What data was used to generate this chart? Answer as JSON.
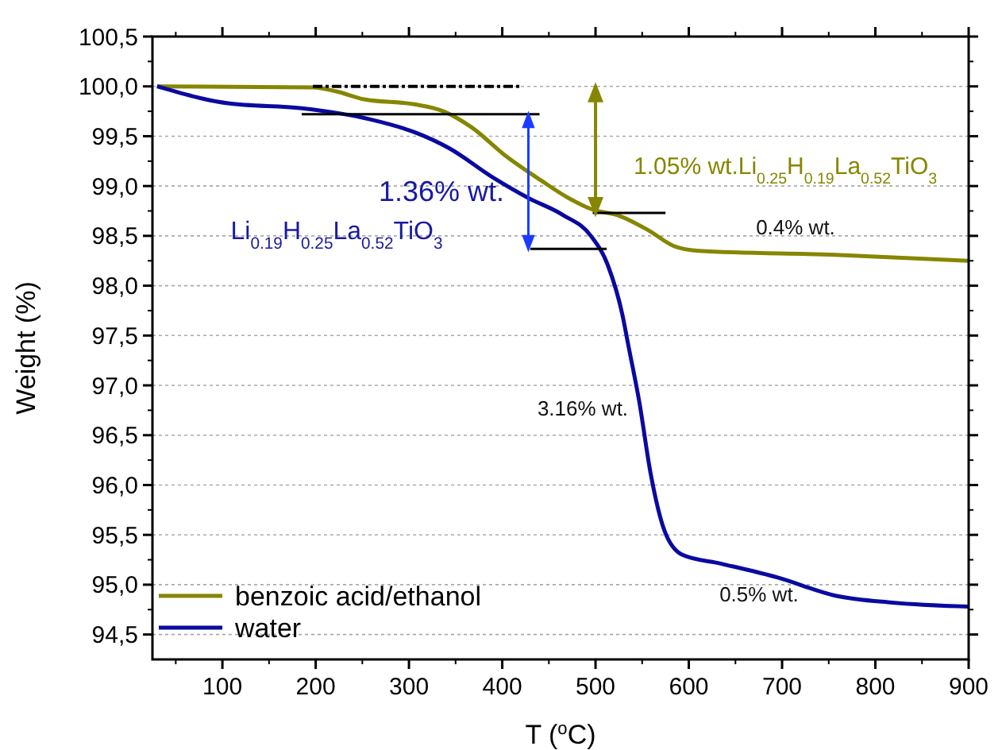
{
  "chart_data": {
    "type": "line",
    "xlabel": "T ($^{o}$C)",
    "ylabel": "Weight (%)",
    "xlim": [
      25,
      900
    ],
    "xticks": [
      100,
      200,
      300,
      400,
      500,
      600,
      700,
      800,
      900
    ],
    "ylim": [
      94.25,
      100.5
    ],
    "yticks": [
      {
        "value": 94.5,
        "label": "94,5"
      },
      {
        "value": 95,
        "label": "95,0"
      },
      {
        "value": 95.5,
        "label": "95,5"
      },
      {
        "value": 96,
        "label": "96,0"
      },
      {
        "value": 96.5,
        "label": "96,5"
      },
      {
        "value": 97,
        "label": "97,0"
      },
      {
        "value": 97.5,
        "label": "97,5"
      },
      {
        "value": 98,
        "label": "98,0"
      },
      {
        "value": 98.5,
        "label": "98,5"
      },
      {
        "value": 99,
        "label": "99,0"
      },
      {
        "value": 99.5,
        "label": "99,5"
      },
      {
        "value": 100,
        "label": "100,0"
      },
      {
        "value": 100.5,
        "label": "100,5"
      }
    ],
    "grid": "y",
    "legend": "bottom left",
    "marker": "none",
    "line_style": "solid",
    "series": [
      {
        "name": "benzoic acid/ethanol",
        "color": "#868600",
        "x": [
          30,
          197,
          222,
          252,
          306,
          337,
          367,
          404,
          441,
          471,
          495,
          526,
          556,
          586,
          611,
          757,
          900
        ],
        "values": [
          100,
          99.99,
          99.95,
          99.87,
          99.82,
          99.75,
          99.59,
          99.3,
          99.06,
          98.88,
          98.77,
          98.7,
          98.56,
          98.39,
          98.35,
          98.31,
          98.25
        ]
      },
      {
        "name": "water",
        "color": "#0a0aa0",
        "x": [
          30,
          106,
          185,
          258,
          306,
          343,
          391,
          428,
          465,
          495,
          513,
          529,
          535,
          547,
          559,
          574,
          593,
          635,
          696,
          757,
          818,
          900
        ],
        "values": [
          100,
          99.83,
          99.78,
          99.67,
          99.54,
          99.38,
          99.08,
          98.88,
          98.71,
          98.5,
          98.21,
          97.7,
          97.41,
          96.83,
          96.12,
          95.54,
          95.3,
          95.21,
          95.07,
          94.89,
          94.82,
          94.78
        ]
      }
    ],
    "annotations": [
      "1.36% wt.",
      "Li$_{0.19}$H$_{0.25}$La$_{0.52}$TiO$_{3}$",
      "1.05% wt.Li$_{0.25}$H$_{0.19}$La$_{0.52}$TiO$_{3}$",
      "0.4% wt.",
      "3.16% wt.",
      "0.5% wt."
    ]
  }
}
